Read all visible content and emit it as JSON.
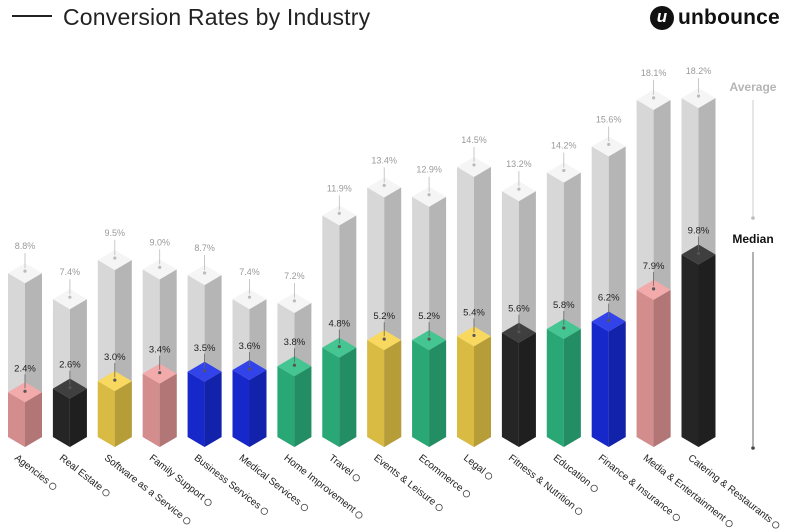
{
  "header": {
    "title": "Conversion Rates by Industry",
    "brand": "unbounce",
    "brand_icon": "unbounce-logo-icon"
  },
  "legend": {
    "average_label": "Average",
    "median_label": "Median"
  },
  "colors": {
    "pink": "#f0a0a0",
    "black": "#2a2a2a",
    "yellow": "#f7d44c",
    "blue": "#1a2ee6",
    "green": "#2fbf86",
    "average_column": "#f4f4f4"
  },
  "chart_data": {
    "type": "bar",
    "title": "Conversion Rates by Industry",
    "categories": [
      "Agencies",
      "Real Estate",
      "Software as a Service",
      "Family Support",
      "Business Services",
      "Medical Services",
      "Home Improvement",
      "Travel",
      "Events & Leisure",
      "Ecommerce",
      "Legal",
      "Fitness & Nutrition",
      "Education",
      "Finance & Insurance",
      "Media & Entertainment",
      "Catering & Restaurants"
    ],
    "series": [
      {
        "name": "Median",
        "values": [
          2.4,
          2.6,
          3.0,
          3.4,
          3.5,
          3.6,
          3.8,
          4.8,
          5.2,
          5.2,
          5.4,
          5.6,
          5.8,
          6.2,
          7.9,
          9.8
        ],
        "labels": [
          "2.4%",
          "2.6%",
          "3.0%",
          "3.4%",
          "3.5%",
          "3.6%",
          "3.8%",
          "4.8%",
          "5.2%",
          "5.2%",
          "5.4%",
          "5.6%",
          "5.8%",
          "6.2%",
          "7.9%",
          "9.8%"
        ]
      },
      {
        "name": "Average",
        "values": [
          8.8,
          7.4,
          9.5,
          9.0,
          8.7,
          7.4,
          7.2,
          11.9,
          13.4,
          12.9,
          14.5,
          13.2,
          14.2,
          15.6,
          18.1,
          18.2
        ],
        "labels": [
          "8.8%",
          "7.4%",
          "9.5%",
          "9.0%",
          "8.7%",
          "7.4%",
          "7.2%",
          "11.9%",
          "13.4%",
          "12.9%",
          "14.5%",
          "13.2%",
          "14.2%",
          "15.6%",
          "18.1%",
          "18.2%"
        ]
      }
    ],
    "bar_colors": [
      "pink",
      "black",
      "yellow",
      "pink",
      "blue",
      "blue",
      "green",
      "green",
      "yellow",
      "green",
      "yellow",
      "black",
      "green",
      "blue",
      "pink",
      "black"
    ],
    "category_icons": [
      "megaphone-icon",
      "house-icon",
      "gear-icon",
      "hands-icon",
      "briefcase-icon",
      "pill-icon",
      "toolbox-icon",
      "plane-icon",
      "ticket-icon",
      "cart-icon",
      "scales-icon",
      "apple-icon",
      "book-icon",
      "coin-icon",
      "tv-icon",
      "dish-icon"
    ],
    "ylim": [
      0,
      18.2
    ],
    "grid": false,
    "legend_position": "right"
  }
}
